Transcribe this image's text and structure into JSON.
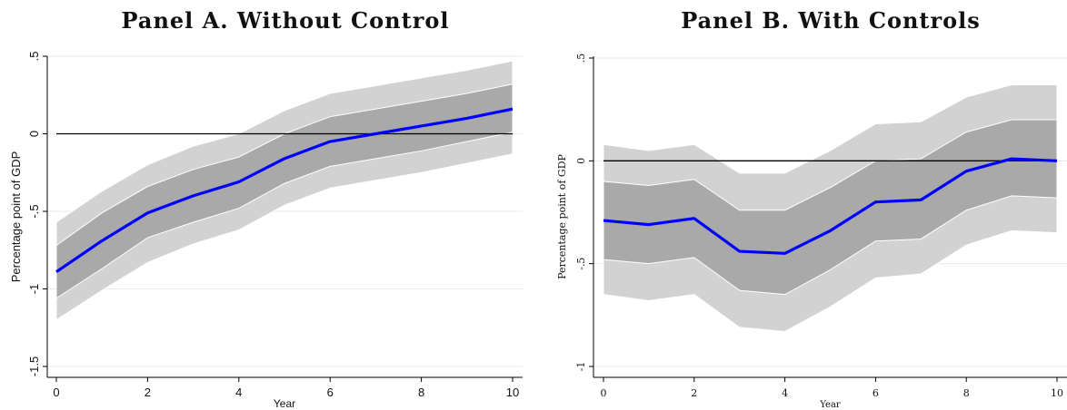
{
  "panels": [
    {
      "title": "Panel A. Without Control",
      "chart_data": {
        "type": "line",
        "title": "Panel A. Without Control",
        "xlabel": "Year",
        "ylabel": "Percentage point of GDP",
        "xlim": [
          0,
          10
        ],
        "ylim": [
          -1.5,
          0.5
        ],
        "xticks": [
          0,
          2,
          4,
          6,
          8,
          10
        ],
        "xtick_labels": [
          "0",
          "2",
          "4",
          "6",
          "8",
          "10"
        ],
        "yticks": [
          -1.5,
          -1,
          -0.5,
          0,
          0.5
        ],
        "ytick_labels": [
          "-1.5",
          "-1",
          "-.5",
          "0",
          ".5"
        ],
        "grid": true,
        "reference_line": 0,
        "x": [
          0,
          1,
          2,
          3,
          4,
          5,
          6,
          7,
          8,
          9,
          10
        ],
        "series": [
          {
            "role": "estimate",
            "values": [
              -0.89,
              -0.69,
              -0.51,
              -0.4,
              -0.31,
              -0.16,
              -0.05,
              0.0,
              0.05,
              0.1,
              0.16
            ]
          }
        ],
        "bands": [
          {
            "role": "outer",
            "lower": [
              -1.2,
              -1.01,
              -0.83,
              -0.71,
              -0.62,
              -0.46,
              -0.35,
              -0.3,
              -0.25,
              -0.19,
              -0.13
            ],
            "upper": [
              -0.57,
              -0.37,
              -0.2,
              -0.08,
              0.0,
              0.15,
              0.26,
              0.31,
              0.36,
              0.41,
              0.47
            ]
          },
          {
            "role": "inner",
            "lower": [
              -1.06,
              -0.87,
              -0.67,
              -0.57,
              -0.48,
              -0.32,
              -0.21,
              -0.16,
              -0.11,
              -0.05,
              0.01
            ],
            "upper": [
              -0.72,
              -0.51,
              -0.34,
              -0.23,
              -0.15,
              0.0,
              0.11,
              0.16,
              0.21,
              0.26,
              0.32
            ]
          }
        ],
        "colors": {
          "line": "#0000ff",
          "outer_band": "#d2d2d2",
          "inner_band": "#a9a9a9",
          "zero_line": "#000000",
          "grid": "#eaeaea"
        }
      }
    },
    {
      "title": "Panel B. With Controls",
      "chart_data": {
        "type": "line",
        "title": "Panel B. With Controls",
        "xlabel": "Year",
        "ylabel": "Percentage point of GDP",
        "xlim": [
          0,
          10
        ],
        "ylim": [
          -1,
          0.5
        ],
        "xticks": [
          0,
          2,
          4,
          6,
          8,
          10
        ],
        "xtick_labels": [
          "0",
          "2",
          "4",
          "6",
          "8",
          "10"
        ],
        "yticks": [
          -1,
          -0.5,
          0,
          0.5
        ],
        "ytick_labels": [
          "-1",
          "-.5",
          "0",
          ".5"
        ],
        "grid": true,
        "reference_line": 0,
        "x": [
          0,
          1,
          2,
          3,
          4,
          5,
          6,
          7,
          8,
          9,
          10
        ],
        "series": [
          {
            "role": "estimate",
            "values": [
              -0.29,
              -0.31,
              -0.28,
              -0.44,
              -0.45,
              -0.34,
              -0.2,
              -0.19,
              -0.05,
              0.01,
              0.0
            ]
          }
        ],
        "bands": [
          {
            "role": "outer",
            "lower": [
              -0.65,
              -0.68,
              -0.65,
              -0.81,
              -0.83,
              -0.71,
              -0.57,
              -0.55,
              -0.41,
              -0.34,
              -0.35
            ],
            "upper": [
              0.08,
              0.05,
              0.08,
              -0.06,
              -0.06,
              0.05,
              0.18,
              0.19,
              0.31,
              0.37,
              0.37
            ]
          },
          {
            "role": "inner",
            "lower": [
              -0.48,
              -0.5,
              -0.47,
              -0.63,
              -0.65,
              -0.53,
              -0.39,
              -0.38,
              -0.24,
              -0.17,
              -0.18
            ],
            "upper": [
              -0.1,
              -0.12,
              -0.09,
              -0.24,
              -0.24,
              -0.13,
              0.0,
              0.01,
              0.14,
              0.2,
              0.2
            ]
          }
        ],
        "colors": {
          "line": "#0000ff",
          "outer_band": "#d2d2d2",
          "inner_band": "#a9a9a9",
          "zero_line": "#000000",
          "grid": "#eaeaea"
        }
      }
    }
  ]
}
